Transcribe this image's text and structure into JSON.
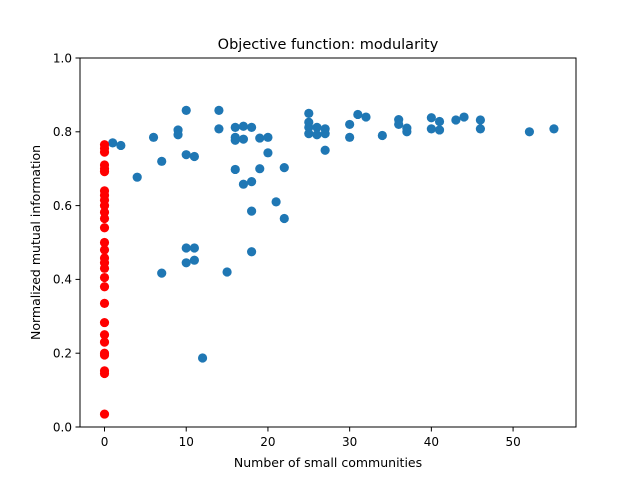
{
  "chart_data": {
    "type": "scatter",
    "title": "Objective function: modularity",
    "xlabel": "Number of small communities",
    "ylabel": "Normalized mutual information",
    "xlim": [
      -3.0,
      57.7
    ],
    "ylim": [
      0.0,
      1.0
    ],
    "xticks": [
      0,
      10,
      20,
      30,
      40,
      50
    ],
    "yticks": [
      0.0,
      0.2,
      0.4,
      0.6,
      0.8,
      1.0
    ],
    "xtick_labels": [
      "0",
      "10",
      "20",
      "30",
      "40",
      "50"
    ],
    "ytick_labels": [
      "0.0",
      "0.2",
      "0.4",
      "0.6",
      "0.8",
      "1.0"
    ],
    "grid": false,
    "series": [
      {
        "color": "#1f77b4",
        "points": [
          [
            1,
            0.77
          ],
          [
            2,
            0.763
          ],
          [
            4,
            0.677
          ],
          [
            6,
            0.785
          ],
          [
            7,
            0.72
          ],
          [
            7,
            0.417
          ],
          [
            9,
            0.805
          ],
          [
            9,
            0.792
          ],
          [
            10,
            0.858
          ],
          [
            10,
            0.738
          ],
          [
            10,
            0.485
          ],
          [
            10,
            0.445
          ],
          [
            11,
            0.733
          ],
          [
            11,
            0.485
          ],
          [
            11,
            0.452
          ],
          [
            12,
            0.187
          ],
          [
            14,
            0.858
          ],
          [
            14,
            0.808
          ],
          [
            15,
            0.42
          ],
          [
            16,
            0.812
          ],
          [
            16,
            0.785
          ],
          [
            16,
            0.777
          ],
          [
            16,
            0.698
          ],
          [
            17,
            0.815
          ],
          [
            17,
            0.78
          ],
          [
            17,
            0.658
          ],
          [
            18,
            0.812
          ],
          [
            18,
            0.665
          ],
          [
            18,
            0.585
          ],
          [
            18,
            0.475
          ],
          [
            19,
            0.783
          ],
          [
            19,
            0.7
          ],
          [
            20,
            0.785
          ],
          [
            20,
            0.743
          ],
          [
            21,
            0.61
          ],
          [
            22,
            0.703
          ],
          [
            22,
            0.565
          ],
          [
            25,
            0.85
          ],
          [
            25,
            0.826
          ],
          [
            25,
            0.812
          ],
          [
            25,
            0.795
          ],
          [
            26,
            0.812
          ],
          [
            26,
            0.792
          ],
          [
            27,
            0.808
          ],
          [
            27,
            0.795
          ],
          [
            27,
            0.75
          ],
          [
            30,
            0.82
          ],
          [
            30,
            0.785
          ],
          [
            31,
            0.847
          ],
          [
            32,
            0.84
          ],
          [
            34,
            0.79
          ],
          [
            36,
            0.833
          ],
          [
            36,
            0.82
          ],
          [
            37,
            0.81
          ],
          [
            37,
            0.8
          ],
          [
            40,
            0.838
          ],
          [
            40,
            0.808
          ],
          [
            41,
            0.828
          ],
          [
            41,
            0.805
          ],
          [
            43,
            0.832
          ],
          [
            44,
            0.84
          ],
          [
            46,
            0.832
          ],
          [
            46,
            0.808
          ],
          [
            52,
            0.8
          ],
          [
            55,
            0.808
          ]
        ]
      },
      {
        "color": "#ff0000",
        "points": [
          [
            0,
            0.765
          ],
          [
            0,
            0.755
          ],
          [
            0,
            0.745
          ],
          [
            0,
            0.71
          ],
          [
            0,
            0.7
          ],
          [
            0,
            0.692
          ],
          [
            0,
            0.64
          ],
          [
            0,
            0.628
          ],
          [
            0,
            0.615
          ],
          [
            0,
            0.6
          ],
          [
            0,
            0.582
          ],
          [
            0,
            0.565
          ],
          [
            0,
            0.54
          ],
          [
            0,
            0.5
          ],
          [
            0,
            0.48
          ],
          [
            0,
            0.458
          ],
          [
            0,
            0.445
          ],
          [
            0,
            0.43
          ],
          [
            0,
            0.405
          ],
          [
            0,
            0.38
          ],
          [
            0,
            0.335
          ],
          [
            0,
            0.283
          ],
          [
            0,
            0.25
          ],
          [
            0,
            0.23
          ],
          [
            0,
            0.2
          ],
          [
            0,
            0.195
          ],
          [
            0,
            0.152
          ],
          [
            0,
            0.145
          ],
          [
            0,
            0.035
          ]
        ]
      }
    ]
  }
}
